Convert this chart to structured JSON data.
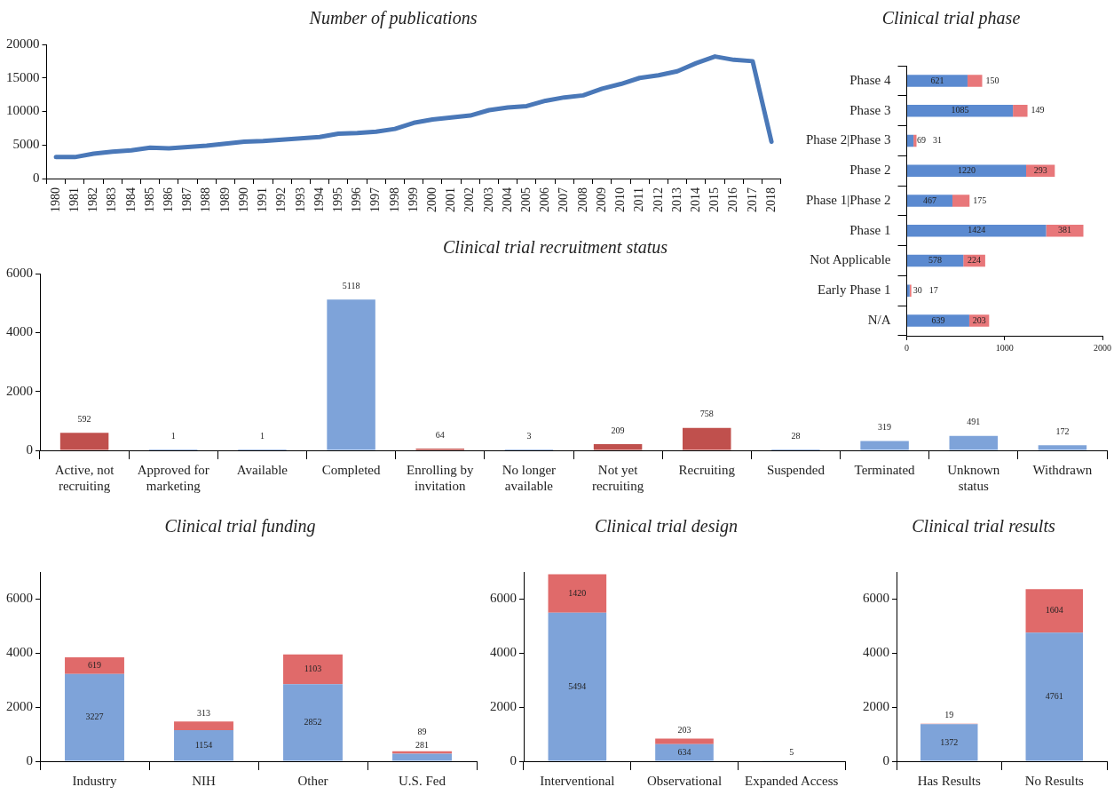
{
  "chart_data": [
    {
      "type": "line",
      "title": "Number of publications",
      "categories": [
        "1980",
        "1981",
        "1982",
        "1983",
        "1984",
        "1985",
        "1986",
        "1987",
        "1988",
        "1989",
        "1990",
        "1991",
        "1992",
        "1993",
        "1994",
        "1995",
        "1996",
        "1997",
        "1998",
        "1999",
        "2000",
        "2001",
        "2002",
        "2003",
        "2004",
        "2005",
        "2006",
        "2007",
        "2008",
        "2009",
        "2010",
        "2011",
        "2012",
        "2013",
        "2014",
        "2015",
        "2016",
        "2017",
        "2018"
      ],
      "series": [
        {
          "color": "#4a78b8",
          "values": [
            3200,
            3200,
            3700,
            4000,
            4200,
            4600,
            4500,
            4700,
            4900,
            5200,
            5500,
            5600,
            5800,
            6000,
            6200,
            6700,
            6800,
            7000,
            7400,
            8300,
            8800,
            9100,
            9400,
            10200,
            10600,
            10800,
            11600,
            12100,
            12400,
            13400,
            14100,
            15000,
            15400,
            16000,
            17200,
            18200,
            17700,
            17500,
            5500
          ]
        }
      ],
      "ylim": [
        0,
        20000
      ],
      "yticks": [
        0,
        5000,
        10000,
        15000,
        20000
      ],
      "grid": false,
      "legend": false,
      "marker": "none",
      "line_style": "solid"
    },
    {
      "type": "bar",
      "title": "Clinical trial phase",
      "orientation": "horizontal",
      "stacked": true,
      "categories": [
        "Phase 4",
        "Phase 3",
        "Phase 2|Phase 3",
        "Phase 2",
        "Phase 1|Phase 2",
        "Phase 1",
        "Not Applicable",
        "Early Phase 1",
        "N/A"
      ],
      "series": [
        {
          "color": "#5b8ad0",
          "values": [
            621,
            1085,
            69,
            1220,
            467,
            1424,
            578,
            30,
            639
          ]
        },
        {
          "color": "#e8777a",
          "values": [
            150,
            149,
            31,
            293,
            175,
            381,
            224,
            17,
            203
          ]
        }
      ],
      "xlim": [
        0,
        2000
      ],
      "xticks": [
        0,
        1000,
        2000
      ],
      "grid": false,
      "legend": false,
      "data_labels": true
    },
    {
      "type": "bar",
      "title": "Clinical trial recruitment status",
      "categories": [
        "Active, not recruiting",
        "Approved for marketing",
        "Available",
        "Completed",
        "Enrolling by invitation",
        "No longer available",
        "Not yet recruiting",
        "Recruiting",
        "Suspended",
        "Terminated",
        "Unknown status",
        "Withdrawn"
      ],
      "values": [
        592,
        1,
        1,
        5118,
        64,
        3,
        209,
        758,
        28,
        319,
        491,
        172
      ],
      "colors": [
        "#c0504d",
        "#4a78c0",
        "#4a78c0",
        "#7ea3d9",
        "#c0504d",
        "#4a78c0",
        "#c0504d",
        "#c0504d",
        "#4a78c0",
        "#7ea3d9",
        "#7ea3d9",
        "#7ea3d9"
      ],
      "ylim": [
        0,
        6000
      ],
      "yticks": [
        0,
        2000,
        4000,
        6000
      ],
      "grid": false,
      "legend": false,
      "data_labels": true
    },
    {
      "type": "bar",
      "title": "Clinical trial funding",
      "stacked": true,
      "categories": [
        "Industry",
        "NIH",
        "Other",
        "U.S. Fed"
      ],
      "series": [
        {
          "color": "#7ea3d9",
          "values": [
            3227,
            1154,
            2852,
            281
          ]
        },
        {
          "color": "#e06a6a",
          "values": [
            619,
            313,
            1103,
            89
          ]
        }
      ],
      "ylim": [
        0,
        7000
      ],
      "yticks": [
        0,
        2000,
        4000,
        6000
      ],
      "grid": false,
      "legend": false,
      "data_labels": true
    },
    {
      "type": "bar",
      "title": "Clinical trial design",
      "stacked": true,
      "categories": [
        "Interventional",
        "Observational",
        "Expanded Access"
      ],
      "series": [
        {
          "color": "#7ea3d9",
          "values": [
            5494,
            634,
            5
          ]
        },
        {
          "color": "#e06a6a",
          "values": [
            1420,
            203,
            null
          ]
        }
      ],
      "ylim": [
        0,
        7000
      ],
      "yticks": [
        0,
        2000,
        4000,
        6000
      ],
      "grid": false,
      "legend": false,
      "data_labels": true
    },
    {
      "type": "bar",
      "title": "Clinical trial results",
      "stacked": true,
      "categories": [
        "Has Results",
        "No Results"
      ],
      "series": [
        {
          "color": "#7ea3d9",
          "values": [
            1372,
            4761
          ]
        },
        {
          "color": "#e06a6a",
          "values": [
            19,
            1604
          ]
        }
      ],
      "ylim": [
        0,
        7000
      ],
      "yticks": [
        0,
        2000,
        4000,
        6000
      ],
      "grid": false,
      "legend": false,
      "data_labels": true
    }
  ]
}
